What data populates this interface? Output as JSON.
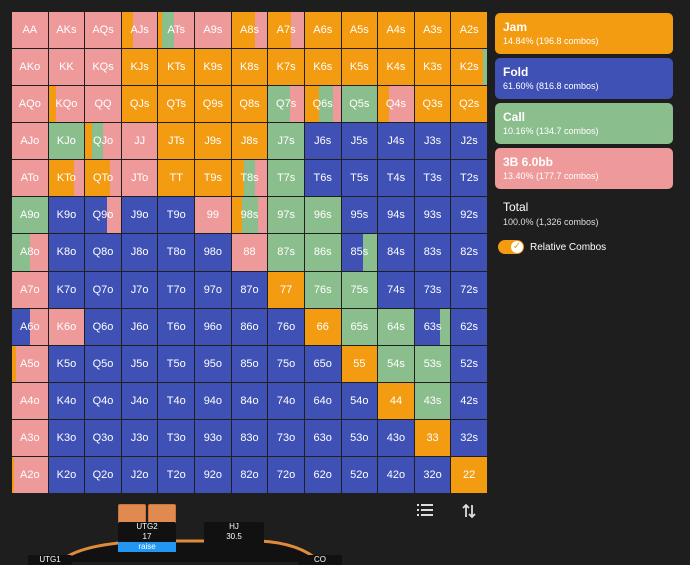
{
  "colors": {
    "jam": "#f39c12",
    "fold": "#3f51b5",
    "call": "#8bbe8d",
    "threebet": "#ef9a9a",
    "background": "#1e1e1e",
    "raise_badge": "#2196f3"
  },
  "legend": [
    {
      "key": "jam",
      "title": "Jam",
      "stat": "14.84% (196.8 combos)"
    },
    {
      "key": "fold",
      "title": "Fold",
      "stat": "61.60% (816.8 combos)"
    },
    {
      "key": "call",
      "title": "Call",
      "stat": "10.16% (134.7 combos)"
    },
    {
      "key": "threebet",
      "title": "3B 6.0bb",
      "stat": "13.40% (177.7 combos)"
    }
  ],
  "total": {
    "title": "Total",
    "stat": "100.0% (1,326 combos)"
  },
  "toggle": {
    "label": "Relative Combos",
    "on": true
  },
  "icons": {
    "list": "list-icon",
    "sort": "sort-icon"
  },
  "table": {
    "utg2": {
      "name": "UTG2",
      "stack": "17",
      "action": "raise"
    },
    "hj": {
      "name": "HJ",
      "stack": "30.5"
    },
    "utg1": {
      "name": "UTG1"
    },
    "co": {
      "name": "CO"
    }
  },
  "grid": {
    "labels": [
      [
        "AA",
        "AKs",
        "AQs",
        "AJs",
        "ATs",
        "A9s",
        "A8s",
        "A7s",
        "A6s",
        "A5s",
        "A4s",
        "A3s",
        "A2s"
      ],
      [
        "AKo",
        "KK",
        "KQs",
        "KJs",
        "KTs",
        "K9s",
        "K8s",
        "K7s",
        "K6s",
        "K5s",
        "K4s",
        "K3s",
        "K2s"
      ],
      [
        "AQo",
        "KQo",
        "QQ",
        "QJs",
        "QTs",
        "Q9s",
        "Q8s",
        "Q7s",
        "Q6s",
        "Q5s",
        "Q4s",
        "Q3s",
        "Q2s"
      ],
      [
        "AJo",
        "KJo",
        "QJo",
        "JJ",
        "JTs",
        "J9s",
        "J8s",
        "J7s",
        "J6s",
        "J5s",
        "J4s",
        "J3s",
        "J2s"
      ],
      [
        "ATo",
        "KTo",
        "QTo",
        "JTo",
        "TT",
        "T9s",
        "T8s",
        "T7s",
        "T6s",
        "T5s",
        "T4s",
        "T3s",
        "T2s"
      ],
      [
        "A9o",
        "K9o",
        "Q9o",
        "J9o",
        "T9o",
        "99",
        "98s",
        "97s",
        "96s",
        "95s",
        "94s",
        "93s",
        "92s"
      ],
      [
        "A8o",
        "K8o",
        "Q8o",
        "J8o",
        "T8o",
        "98o",
        "88",
        "87s",
        "86s",
        "85s",
        "84s",
        "83s",
        "82s"
      ],
      [
        "A7o",
        "K7o",
        "Q7o",
        "J7o",
        "T7o",
        "97o",
        "87o",
        "77",
        "76s",
        "75s",
        "74s",
        "73s",
        "72s"
      ],
      [
        "A6o",
        "K6o",
        "Q6o",
        "J6o",
        "T6o",
        "96o",
        "86o",
        "76o",
        "66",
        "65s",
        "64s",
        "63s",
        "62s"
      ],
      [
        "A5o",
        "K5o",
        "Q5o",
        "J5o",
        "T5o",
        "95o",
        "85o",
        "75o",
        "65o",
        "55",
        "54s",
        "53s",
        "52s"
      ],
      [
        "A4o",
        "K4o",
        "Q4o",
        "J4o",
        "T4o",
        "94o",
        "84o",
        "74o",
        "64o",
        "54o",
        "44",
        "43s",
        "42s"
      ],
      [
        "A3o",
        "K3o",
        "Q3o",
        "J3o",
        "T3o",
        "93o",
        "83o",
        "73o",
        "63o",
        "53o",
        "43o",
        "33",
        "32s"
      ],
      [
        "A2o",
        "K2o",
        "Q2o",
        "J2o",
        "T2o",
        "92o",
        "82o",
        "72o",
        "62o",
        "52o",
        "42o",
        "32o",
        "22"
      ]
    ],
    "mix": [
      [
        [
          0,
          0,
          0,
          100
        ],
        [
          0,
          0,
          0,
          100
        ],
        [
          0,
          0,
          0,
          100
        ],
        [
          30,
          0,
          0,
          70
        ],
        [
          10,
          0,
          35,
          55
        ],
        [
          0,
          0,
          0,
          100
        ],
        [
          65,
          0,
          0,
          35
        ],
        [
          65,
          0,
          0,
          35
        ],
        [
          100,
          0,
          0,
          0
        ],
        [
          100,
          0,
          0,
          0
        ],
        [
          100,
          0,
          0,
          0
        ],
        [
          100,
          0,
          0,
          0
        ],
        [
          100,
          0,
          0,
          0
        ]
      ],
      [
        [
          0,
          0,
          0,
          100
        ],
        [
          0,
          0,
          0,
          100
        ],
        [
          0,
          0,
          0,
          100
        ],
        [
          100,
          0,
          0,
          0
        ],
        [
          100,
          0,
          0,
          0
        ],
        [
          100,
          0,
          0,
          0
        ],
        [
          100,
          0,
          0,
          0
        ],
        [
          100,
          0,
          0,
          0
        ],
        [
          100,
          0,
          0,
          0
        ],
        [
          100,
          0,
          0,
          0
        ],
        [
          100,
          0,
          0,
          0
        ],
        [
          100,
          0,
          0,
          0
        ],
        [
          90,
          0,
          10,
          0
        ]
      ],
      [
        [
          0,
          0,
          0,
          100
        ],
        [
          20,
          0,
          0,
          80
        ],
        [
          0,
          0,
          0,
          100
        ],
        [
          100,
          0,
          0,
          0
        ],
        [
          100,
          0,
          0,
          0
        ],
        [
          100,
          0,
          0,
          0
        ],
        [
          100,
          0,
          0,
          0
        ],
        [
          0,
          0,
          60,
          40
        ],
        [
          40,
          0,
          40,
          20
        ],
        [
          0,
          0,
          100,
          0
        ],
        [
          30,
          0,
          0,
          70
        ],
        [
          100,
          0,
          0,
          0
        ],
        [
          100,
          0,
          0,
          0
        ]
      ],
      [
        [
          0,
          0,
          0,
          100
        ],
        [
          0,
          0,
          100,
          0
        ],
        [
          20,
          0,
          30,
          50
        ],
        [
          0,
          0,
          0,
          100
        ],
        [
          100,
          0,
          0,
          0
        ],
        [
          100,
          0,
          0,
          0
        ],
        [
          100,
          0,
          0,
          0
        ],
        [
          0,
          0,
          100,
          0
        ],
        [
          0,
          100,
          0,
          0
        ],
        [
          0,
          100,
          0,
          0
        ],
        [
          0,
          100,
          0,
          0
        ],
        [
          0,
          100,
          0,
          0
        ],
        [
          0,
          100,
          0,
          0
        ]
      ],
      [
        [
          0,
          0,
          0,
          100
        ],
        [
          70,
          0,
          0,
          30
        ],
        [
          70,
          0,
          0,
          30
        ],
        [
          0,
          0,
          0,
          100
        ],
        [
          100,
          0,
          0,
          0
        ],
        [
          100,
          0,
          0,
          0
        ],
        [
          35,
          0,
          30,
          35
        ],
        [
          0,
          0,
          100,
          0
        ],
        [
          0,
          100,
          0,
          0
        ],
        [
          0,
          100,
          0,
          0
        ],
        [
          0,
          100,
          0,
          0
        ],
        [
          0,
          100,
          0,
          0
        ],
        [
          0,
          100,
          0,
          0
        ]
      ],
      [
        [
          0,
          0,
          100,
          0
        ],
        [
          0,
          100,
          0,
          0
        ],
        [
          0,
          60,
          0,
          40
        ],
        [
          0,
          100,
          0,
          0
        ],
        [
          0,
          100,
          0,
          0
        ],
        [
          0,
          0,
          0,
          100
        ],
        [
          30,
          0,
          45,
          25
        ],
        [
          0,
          0,
          100,
          0
        ],
        [
          0,
          0,
          100,
          0
        ],
        [
          0,
          100,
          0,
          0
        ],
        [
          0,
          100,
          0,
          0
        ],
        [
          0,
          100,
          0,
          0
        ],
        [
          0,
          100,
          0,
          0
        ]
      ],
      [
        [
          0,
          0,
          50,
          50
        ],
        [
          0,
          100,
          0,
          0
        ],
        [
          0,
          100,
          0,
          0
        ],
        [
          0,
          100,
          0,
          0
        ],
        [
          0,
          100,
          0,
          0
        ],
        [
          0,
          100,
          0,
          0
        ],
        [
          0,
          0,
          0,
          100
        ],
        [
          0,
          0,
          100,
          0
        ],
        [
          0,
          0,
          100,
          0
        ],
        [
          0,
          60,
          40,
          0
        ],
        [
          0,
          100,
          0,
          0
        ],
        [
          0,
          100,
          0,
          0
        ],
        [
          0,
          100,
          0,
          0
        ]
      ],
      [
        [
          0,
          0,
          0,
          100
        ],
        [
          0,
          100,
          0,
          0
        ],
        [
          0,
          100,
          0,
          0
        ],
        [
          0,
          100,
          0,
          0
        ],
        [
          0,
          100,
          0,
          0
        ],
        [
          0,
          100,
          0,
          0
        ],
        [
          0,
          100,
          0,
          0
        ],
        [
          100,
          0,
          0,
          0
        ],
        [
          0,
          0,
          100,
          0
        ],
        [
          0,
          0,
          100,
          0
        ],
        [
          0,
          100,
          0,
          0
        ],
        [
          0,
          100,
          0,
          0
        ],
        [
          0,
          100,
          0,
          0
        ]
      ],
      [
        [
          0,
          50,
          0,
          50
        ],
        [
          0,
          0,
          0,
          100
        ],
        [
          0,
          100,
          0,
          0
        ],
        [
          0,
          100,
          0,
          0
        ],
        [
          0,
          100,
          0,
          0
        ],
        [
          0,
          100,
          0,
          0
        ],
        [
          0,
          100,
          0,
          0
        ],
        [
          0,
          100,
          0,
          0
        ],
        [
          100,
          0,
          0,
          0
        ],
        [
          0,
          0,
          100,
          0
        ],
        [
          0,
          0,
          100,
          0
        ],
        [
          0,
          70,
          30,
          0
        ],
        [
          0,
          100,
          0,
          0
        ]
      ],
      [
        [
          10,
          0,
          0,
          90
        ],
        [
          0,
          100,
          0,
          0
        ],
        [
          0,
          100,
          0,
          0
        ],
        [
          0,
          100,
          0,
          0
        ],
        [
          0,
          100,
          0,
          0
        ],
        [
          0,
          100,
          0,
          0
        ],
        [
          0,
          100,
          0,
          0
        ],
        [
          0,
          100,
          0,
          0
        ],
        [
          0,
          100,
          0,
          0
        ],
        [
          100,
          0,
          0,
          0
        ],
        [
          0,
          0,
          100,
          0
        ],
        [
          0,
          0,
          100,
          0
        ],
        [
          0,
          100,
          0,
          0
        ]
      ],
      [
        [
          0,
          0,
          0,
          100
        ],
        [
          0,
          100,
          0,
          0
        ],
        [
          0,
          100,
          0,
          0
        ],
        [
          0,
          100,
          0,
          0
        ],
        [
          0,
          100,
          0,
          0
        ],
        [
          0,
          100,
          0,
          0
        ],
        [
          0,
          100,
          0,
          0
        ],
        [
          0,
          100,
          0,
          0
        ],
        [
          0,
          100,
          0,
          0
        ],
        [
          0,
          100,
          0,
          0
        ],
        [
          100,
          0,
          0,
          0
        ],
        [
          0,
          0,
          100,
          0
        ],
        [
          0,
          100,
          0,
          0
        ]
      ],
      [
        [
          0,
          0,
          0,
          100
        ],
        [
          0,
          100,
          0,
          0
        ],
        [
          0,
          100,
          0,
          0
        ],
        [
          0,
          100,
          0,
          0
        ],
        [
          0,
          100,
          0,
          0
        ],
        [
          0,
          100,
          0,
          0
        ],
        [
          0,
          100,
          0,
          0
        ],
        [
          0,
          100,
          0,
          0
        ],
        [
          0,
          100,
          0,
          0
        ],
        [
          0,
          100,
          0,
          0
        ],
        [
          0,
          100,
          0,
          0
        ],
        [
          100,
          0,
          0,
          0
        ],
        [
          0,
          100,
          0,
          0
        ]
      ],
      [
        [
          5,
          0,
          0,
          95
        ],
        [
          0,
          100,
          0,
          0
        ],
        [
          0,
          100,
          0,
          0
        ],
        [
          0,
          100,
          0,
          0
        ],
        [
          0,
          100,
          0,
          0
        ],
        [
          0,
          100,
          0,
          0
        ],
        [
          0,
          100,
          0,
          0
        ],
        [
          0,
          100,
          0,
          0
        ],
        [
          0,
          100,
          0,
          0
        ],
        [
          0,
          100,
          0,
          0
        ],
        [
          0,
          100,
          0,
          0
        ],
        [
          0,
          100,
          0,
          0
        ],
        [
          100,
          0,
          0,
          0
        ]
      ]
    ]
  }
}
